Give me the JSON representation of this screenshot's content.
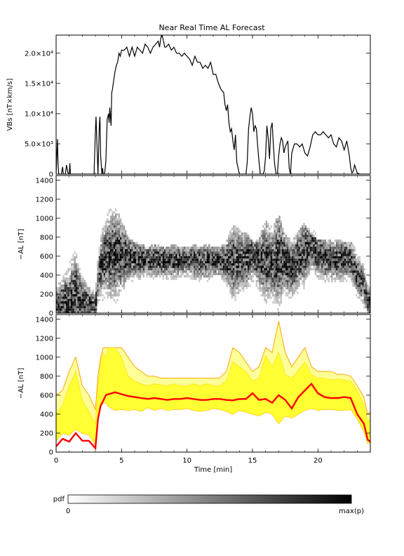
{
  "chart_data": [
    {
      "type": "line",
      "title": "Near Real Time AL Forecast",
      "ylabel": "VBs [nT×km/s]",
      "xlim": [
        0,
        24
      ],
      "ylim": [
        0,
        23000
      ],
      "yticks": [
        0,
        5000,
        10000,
        15000,
        20000
      ],
      "ytick_labels": [
        "0",
        "5.0×10³",
        "1.0×10⁴",
        "1.5×10⁴",
        "2.0×10⁴"
      ],
      "series": [
        {
          "color": "#000000",
          "x": [
            0,
            0.1,
            0.15,
            0.2,
            0.3,
            0.4,
            0.5,
            0.55,
            0.6,
            0.7,
            0.8,
            0.9,
            1.0,
            1.05,
            1.1,
            1.2,
            1.3,
            2.9,
            3.0,
            3.05,
            3.1,
            3.2,
            3.3,
            3.35,
            3.4,
            3.5,
            3.55,
            3.6,
            3.7,
            3.8,
            3.9,
            4.0,
            4.05,
            4.1,
            4.2,
            4.25,
            4.3,
            4.4,
            4.5,
            4.6,
            4.7,
            4.8,
            4.9,
            5.0,
            5.2,
            5.4,
            5.6,
            5.8,
            6.0,
            6.2,
            6.4,
            6.6,
            6.8,
            7.0,
            7.2,
            7.4,
            7.6,
            7.8,
            7.9,
            8.0,
            8.1,
            8.2,
            8.3,
            8.4,
            8.6,
            8.8,
            9.0,
            9.2,
            9.4,
            9.6,
            9.8,
            10.0,
            10.2,
            10.4,
            10.6,
            10.8,
            11.0,
            11.2,
            11.4,
            11.6,
            11.8,
            12.0,
            12.2,
            12.4,
            12.6,
            12.8,
            12.9,
            13.0,
            13.1,
            13.2,
            13.3,
            13.4,
            13.5,
            13.6,
            13.7,
            13.8,
            14.0,
            14.2,
            14.4,
            14.5,
            14.6,
            14.7,
            14.8,
            14.9,
            15.0,
            15.1,
            15.2,
            15.3,
            15.4,
            15.5,
            15.6,
            15.7,
            15.8,
            15.9,
            16.0,
            16.1,
            16.2,
            16.3,
            16.4,
            16.5,
            16.6,
            16.7,
            16.8,
            16.9,
            17.0,
            17.1,
            17.2,
            17.3,
            17.4,
            17.5,
            17.6,
            17.7,
            17.8,
            17.9,
            18.0,
            18.2,
            18.4,
            18.6,
            18.8,
            19.0,
            19.2,
            19.4,
            19.6,
            19.8,
            20.0,
            20.2,
            20.4,
            20.6,
            20.8,
            21.0,
            21.2,
            21.4,
            21.6,
            21.8,
            22.0,
            22.2,
            22.4,
            22.5,
            22.6,
            22.7,
            22.8,
            23.0,
            23.2,
            23.4,
            23.6,
            23.8,
            24.0
          ],
          "y": [
            0,
            5800,
            1500,
            0,
            0,
            0,
            1200,
            0,
            0,
            0,
            1500,
            200,
            0,
            1800,
            0,
            0,
            0,
            0,
            7000,
            9500,
            6000,
            0,
            8000,
            9500,
            3000,
            0,
            1000,
            0,
            0,
            2000,
            9000,
            10000,
            8500,
            11000,
            8000,
            13500,
            14000,
            15500,
            17000,
            18000,
            18500,
            20000,
            19500,
            20500,
            20500,
            21000,
            19500,
            21000,
            19500,
            21000,
            20500,
            20000,
            21500,
            21000,
            20000,
            21000,
            21500,
            22000,
            21000,
            22500,
            23000,
            22000,
            21000,
            21000,
            21500,
            20500,
            21000,
            20000,
            20000,
            19500,
            20000,
            19500,
            19000,
            18000,
            19500,
            18500,
            18500,
            17500,
            18000,
            17500,
            18500,
            16500,
            16500,
            15000,
            14000,
            13500,
            11500,
            10500,
            11500,
            8500,
            7000,
            7500,
            5500,
            4000,
            6500,
            2000,
            0,
            0,
            0,
            0,
            2000,
            7500,
            9500,
            11000,
            10000,
            7000,
            8000,
            7500,
            4500,
            2000,
            0,
            0,
            0,
            500,
            3000,
            8000,
            6000,
            2500,
            7500,
            8500,
            4500,
            1500,
            0,
            0,
            3000,
            5000,
            6000,
            5500,
            3500,
            4500,
            5000,
            5500,
            1000,
            0,
            3500,
            5000,
            5000,
            4500,
            5000,
            3500,
            3000,
            4500,
            6500,
            7000,
            6500,
            6500,
            7000,
            6500,
            6000,
            6500,
            5000,
            4500,
            6000,
            5500,
            4000,
            5500,
            3000,
            1000,
            200,
            500,
            1500,
            200,
            0,
            0,
            0,
            0,
            0
          ]
        }
      ]
    },
    {
      "type": "heatmap",
      "ylabel": "−AL [nT]",
      "xlim": [
        0,
        24
      ],
      "ylim": [
        0,
        1450
      ],
      "yticks": [
        0,
        200,
        400,
        600,
        800,
        1000,
        1200,
        1400
      ],
      "ytick_labels": [
        "0",
        "200",
        "400",
        "600",
        "800",
        "1000",
        "1200",
        "1400"
      ],
      "colorscale": [
        "#ffffff",
        "#000000"
      ],
      "colorbar_label": "pdf",
      "colorbar_min_label": "0",
      "colorbar_max_label": "max(p)"
    },
    {
      "type": "area",
      "ylabel": "−AL [nT]",
      "xlabel": "Time [min]",
      "xlim": [
        0,
        24
      ],
      "ylim": [
        0,
        1450
      ],
      "xticks": [
        0,
        5,
        10,
        15,
        20
      ],
      "xtick_labels": [
        "0",
        "5",
        "10",
        "15",
        "20"
      ],
      "yticks": [
        0,
        200,
        400,
        600,
        800,
        1000,
        1200,
        1400
      ],
      "ytick_labels": [
        "0",
        "200",
        "400",
        "600",
        "800",
        "1000",
        "1200",
        "1400"
      ],
      "x": [
        0,
        0.5,
        1,
        1.5,
        2,
        2.5,
        3,
        3.2,
        3.4,
        3.6,
        3.8,
        4,
        4.5,
        5,
        5.5,
        6,
        6.5,
        7,
        7.5,
        8,
        8.5,
        9,
        9.5,
        10,
        10.5,
        11,
        11.5,
        12,
        12.5,
        13,
        13.5,
        14,
        14.5,
        15,
        15.5,
        16,
        16.5,
        17,
        17.5,
        18,
        18.5,
        19,
        19.5,
        20,
        20.5,
        21,
        21.5,
        22,
        22.5,
        23,
        23.5,
        23.8,
        24
      ],
      "series": [
        {
          "color": "#ff0000",
          "y": [
            60,
            140,
            110,
            200,
            120,
            120,
            40,
            350,
            490,
            540,
            600,
            610,
            630,
            610,
            590,
            580,
            570,
            560,
            570,
            560,
            550,
            560,
            560,
            570,
            560,
            550,
            550,
            560,
            560,
            550,
            545,
            560,
            560,
            620,
            550,
            560,
            520,
            600,
            550,
            460,
            580,
            650,
            720,
            620,
            580,
            570,
            570,
            580,
            570,
            400,
            300,
            130,
            110
          ]
        },
        {
          "color": "#ffff00",
          "y_lower": [
            120,
            200,
            180,
            240,
            200,
            180,
            80,
            400,
            480,
            520,
            520,
            480,
            440,
            450,
            440,
            450,
            430,
            470,
            440,
            460,
            440,
            450,
            450,
            460,
            440,
            430,
            440,
            460,
            450,
            430,
            400,
            440,
            420,
            400,
            380,
            420,
            400,
            300,
            380,
            360,
            400,
            440,
            460,
            440,
            450,
            450,
            440,
            440,
            450,
            350,
            220,
            90,
            100
          ],
          "y_upper": [
            400,
            500,
            700,
            850,
            550,
            430,
            300,
            700,
            950,
            1050,
            1000,
            1100,
            1100,
            1000,
            800,
            750,
            720,
            700,
            720,
            710,
            700,
            720,
            700,
            700,
            720,
            700,
            720,
            700,
            700,
            750,
            950,
            900,
            850,
            750,
            780,
            1020,
            900,
            1050,
            820,
            780,
            860,
            950,
            820,
            780,
            780,
            760,
            770,
            760,
            750,
            650,
            500,
            320,
            350
          ]
        },
        {
          "color": "#ffa500",
          "y": [
            600,
            650,
            850,
            1000,
            700,
            600,
            450,
            800,
            1000,
            1100,
            1100,
            1100,
            1100,
            1100,
            1000,
            900,
            850,
            800,
            800,
            780,
            780,
            780,
            780,
            780,
            780,
            780,
            780,
            780,
            780,
            850,
            1100,
            1050,
            950,
            850,
            900,
            1100,
            1050,
            1380,
            1050,
            900,
            1000,
            1100,
            900,
            850,
            850,
            850,
            820,
            820,
            800,
            700,
            580,
            400,
            420
          ]
        }
      ]
    }
  ]
}
